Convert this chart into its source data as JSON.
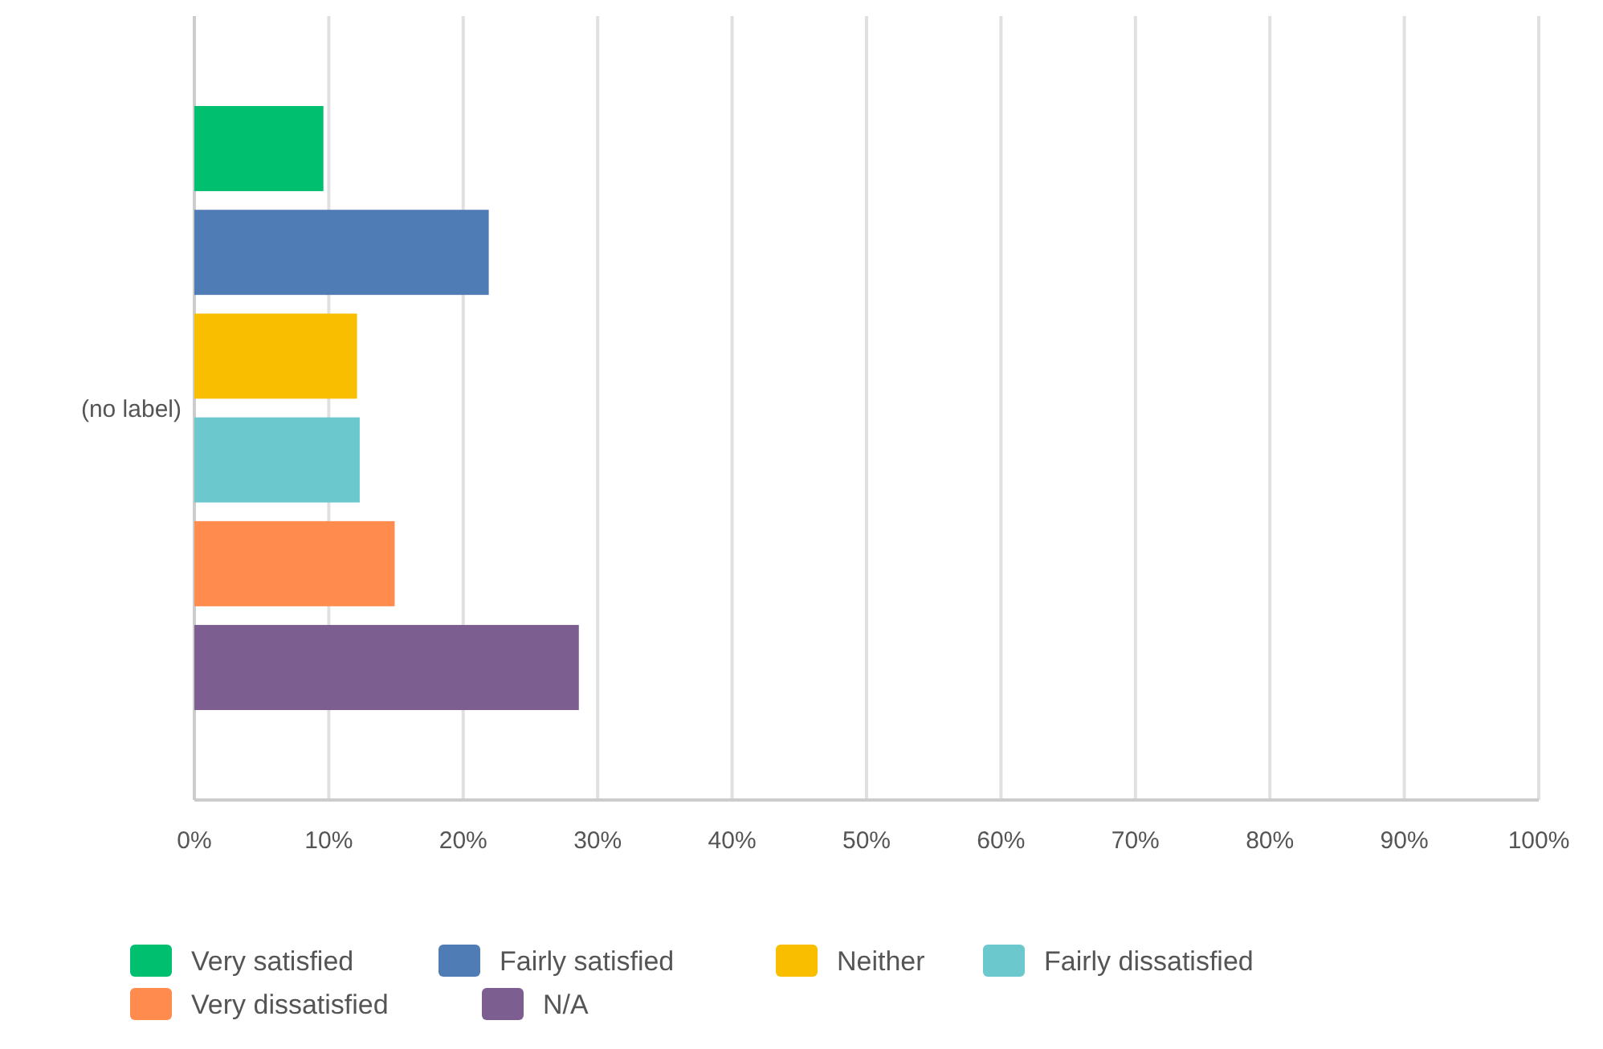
{
  "chart_data": {
    "type": "bar",
    "orientation": "horizontal",
    "categories": [
      "(no label)"
    ],
    "series": [
      {
        "name": "Very satisfied",
        "color": "#00bf6f",
        "values": [
          9.6
        ]
      },
      {
        "name": "Fairly satisfied",
        "color": "#507cb6",
        "values": [
          21.9
        ]
      },
      {
        "name": "Neither",
        "color": "#f9be00",
        "values": [
          12.1
        ]
      },
      {
        "name": "Fairly dissatisfied",
        "color": "#6bc8cd",
        "values": [
          12.3
        ]
      },
      {
        "name": "Very dissatisfied",
        "color": "#ff8b4f",
        "values": [
          14.9
        ]
      },
      {
        "name": "N/A",
        "color": "#7d5e90",
        "values": [
          28.6
        ]
      }
    ],
    "xlim": [
      0,
      100
    ],
    "xticks": [
      {
        "value": 0,
        "label": "0%"
      },
      {
        "value": 10,
        "label": "10%"
      },
      {
        "value": 20,
        "label": "20%"
      },
      {
        "value": 30,
        "label": "30%"
      },
      {
        "value": 40,
        "label": "40%"
      },
      {
        "value": 50,
        "label": "50%"
      },
      {
        "value": 60,
        "label": "60%"
      },
      {
        "value": 70,
        "label": "70%"
      },
      {
        "value": 80,
        "label": "80%"
      },
      {
        "value": 90,
        "label": "90%"
      },
      {
        "value": 100,
        "label": "100%"
      }
    ],
    "grid": "x",
    "legend": "bottom"
  }
}
